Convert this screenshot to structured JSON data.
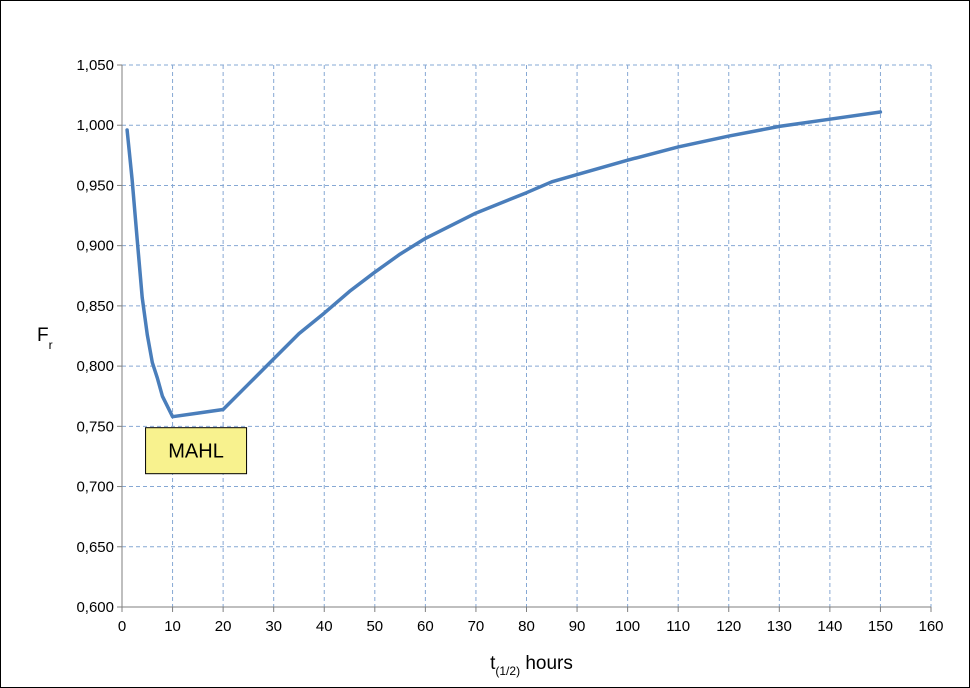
{
  "chart_data": {
    "type": "line",
    "title": "",
    "xlabel": {
      "main": "t",
      "sub": "(1/2)",
      "rest": " hours"
    },
    "ylabel": {
      "main": "F",
      "sub": "r"
    },
    "xlim": [
      0,
      160
    ],
    "ylim": [
      0.6,
      1.05
    ],
    "x_ticks": [
      0,
      10,
      20,
      30,
      40,
      50,
      60,
      70,
      80,
      90,
      100,
      110,
      120,
      130,
      140,
      150,
      160
    ],
    "x_tick_labels": [
      "0",
      "10",
      "20",
      "30",
      "40",
      "50",
      "60",
      "70",
      "80",
      "90",
      "100",
      "110",
      "120",
      "130",
      "140",
      "150",
      "160"
    ],
    "y_ticks": [
      0.6,
      0.65,
      0.7,
      0.75,
      0.8,
      0.85,
      0.9,
      0.95,
      1.0,
      1.05
    ],
    "y_tick_labels": [
      "0,600",
      "0,650",
      "0,700",
      "0,750",
      "0,800",
      "0,850",
      "0,900",
      "0,950",
      "1,000",
      "1,050"
    ],
    "grid": true,
    "grid_style": "dashed",
    "series": [
      {
        "color": "#4a7ebb",
        "x": [
          1,
          2,
          3,
          4,
          5,
          6,
          7,
          8,
          10,
          15,
          20,
          25,
          30,
          35,
          40,
          45,
          50,
          55,
          60,
          70,
          80,
          85,
          90,
          100,
          110,
          120,
          130,
          140,
          150
        ],
        "y": [
          0.996,
          0.955,
          0.905,
          0.857,
          0.826,
          0.803,
          0.79,
          0.775,
          0.758,
          0.761,
          0.764,
          0.785,
          0.806,
          0.827,
          0.844,
          0.862,
          0.878,
          0.893,
          0.906,
          0.927,
          0.944,
          0.953,
          0.959,
          0.971,
          0.982,
          0.991,
          0.999,
          1.005,
          1.011
        ]
      }
    ],
    "annotations": [
      {
        "text": "MAHL",
        "x": 10,
        "y": 0.758,
        "fill": "#f8f28e",
        "border": "#000000"
      }
    ]
  }
}
